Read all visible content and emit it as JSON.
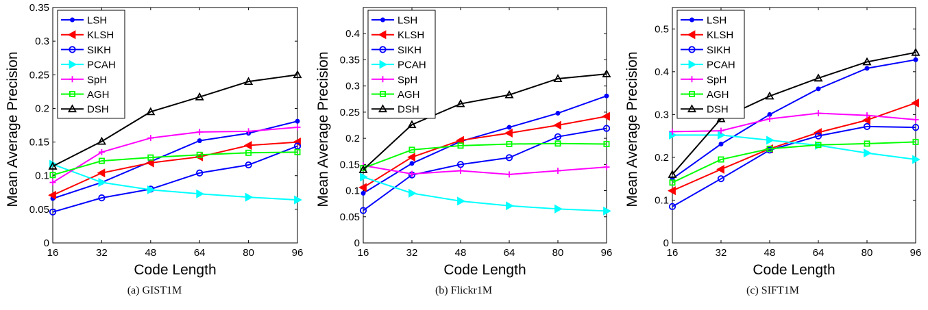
{
  "chart_data": [
    {
      "type": "line",
      "caption": "(a)  GIST1M",
      "xlabel": "Code Length",
      "ylabel": "Mean Average Precision",
      "x": [
        16,
        32,
        48,
        64,
        80,
        96
      ],
      "xticks": [
        "16",
        "32",
        "48",
        "64",
        "80",
        "96"
      ],
      "ylim": [
        0,
        0.35
      ],
      "yticks": [
        "0",
        "0.05",
        "0.1",
        "0.15",
        "0.2",
        "0.25",
        "0.3",
        "0.35"
      ],
      "legend_position": "top-left",
      "series": [
        {
          "name": "LSH",
          "color": "#0000ff",
          "marker": "dot",
          "values": [
            0.066,
            0.09,
            0.121,
            0.152,
            0.163,
            0.181
          ]
        },
        {
          "name": "KLSH",
          "color": "#ff0000",
          "marker": "triangle-left",
          "values": [
            0.071,
            0.104,
            0.119,
            0.128,
            0.145,
            0.15
          ]
        },
        {
          "name": "SIKH",
          "color": "#0000ff",
          "marker": "circle",
          "values": [
            0.046,
            0.067,
            0.08,
            0.104,
            0.116,
            0.144
          ]
        },
        {
          "name": "PCAH",
          "color": "#00ffff",
          "marker": "triangle-right",
          "values": [
            0.117,
            0.09,
            0.079,
            0.073,
            0.068,
            0.064
          ]
        },
        {
          "name": "SpH",
          "color": "#ff00ff",
          "marker": "plus",
          "values": [
            0.09,
            0.135,
            0.156,
            0.165,
            0.166,
            0.172
          ]
        },
        {
          "name": "AGH",
          "color": "#00ff00",
          "marker": "square",
          "values": [
            0.101,
            0.122,
            0.127,
            0.131,
            0.134,
            0.135
          ]
        },
        {
          "name": "DSH",
          "color": "#000000",
          "marker": "triangle-up",
          "values": [
            0.114,
            0.151,
            0.195,
            0.217,
            0.24,
            0.25
          ]
        }
      ]
    },
    {
      "type": "line",
      "caption": "(b)  Flickr1M",
      "xlabel": "Code Length",
      "ylabel": "Mean Average Precision",
      "x": [
        16,
        32,
        48,
        64,
        80,
        96
      ],
      "xticks": [
        "16",
        "32",
        "48",
        "64",
        "80",
        "96"
      ],
      "ylim": [
        0,
        0.45
      ],
      "yticks": [
        "0",
        "0.05",
        "0.1",
        "0.15",
        "0.2",
        "0.25",
        "0.3",
        "0.35",
        "0.4"
      ],
      "legend_position": "top-left",
      "series": [
        {
          "name": "LSH",
          "color": "#0000ff",
          "marker": "dot",
          "values": [
            0.095,
            0.152,
            0.194,
            0.221,
            0.248,
            0.281
          ]
        },
        {
          "name": "KLSH",
          "color": "#ff0000",
          "marker": "triangle-left",
          "values": [
            0.106,
            0.164,
            0.196,
            0.21,
            0.225,
            0.242
          ]
        },
        {
          "name": "SIKH",
          "color": "#0000ff",
          "marker": "circle",
          "values": [
            0.062,
            0.13,
            0.15,
            0.163,
            0.203,
            0.219
          ]
        },
        {
          "name": "PCAH",
          "color": "#00ffff",
          "marker": "triangle-right",
          "values": [
            0.126,
            0.095,
            0.08,
            0.071,
            0.065,
            0.061
          ]
        },
        {
          "name": "SpH",
          "color": "#ff00ff",
          "marker": "plus",
          "values": [
            0.148,
            0.132,
            0.138,
            0.131,
            0.138,
            0.145
          ]
        },
        {
          "name": "AGH",
          "color": "#00ff00",
          "marker": "square",
          "values": [
            0.143,
            0.178,
            0.186,
            0.189,
            0.19,
            0.189
          ]
        },
        {
          "name": "DSH",
          "color": "#000000",
          "marker": "triangle-up",
          "values": [
            0.14,
            0.226,
            0.266,
            0.283,
            0.314,
            0.323
          ]
        }
      ]
    },
    {
      "type": "line",
      "caption": "(c)  SIFT1M",
      "xlabel": "Code Length",
      "ylabel": "Mean Average Precision",
      "x": [
        16,
        32,
        48,
        64,
        80,
        96
      ],
      "xticks": [
        "16",
        "32",
        "48",
        "64",
        "80",
        "96"
      ],
      "ylim": [
        0,
        0.55
      ],
      "yticks": [
        "0",
        "0.1",
        "0.2",
        "0.3",
        "0.4",
        "0.5"
      ],
      "legend_position": "top-left",
      "series": [
        {
          "name": "LSH",
          "color": "#0000ff",
          "marker": "dot",
          "values": [
            0.15,
            0.231,
            0.3,
            0.36,
            0.408,
            0.428
          ]
        },
        {
          "name": "KLSH",
          "color": "#ff0000",
          "marker": "triangle-left",
          "values": [
            0.122,
            0.172,
            0.22,
            0.258,
            0.287,
            0.327
          ]
        },
        {
          "name": "SIKH",
          "color": "#0000ff",
          "marker": "circle",
          "values": [
            0.085,
            0.15,
            0.217,
            0.25,
            0.272,
            0.27
          ]
        },
        {
          "name": "PCAH",
          "color": "#00ffff",
          "marker": "triangle-right",
          "values": [
            0.252,
            0.252,
            0.24,
            0.228,
            0.21,
            0.195
          ]
        },
        {
          "name": "SpH",
          "color": "#ff00ff",
          "marker": "plus",
          "values": [
            0.26,
            0.262,
            0.29,
            0.303,
            0.298,
            0.288
          ]
        },
        {
          "name": "AGH",
          "color": "#00ff00",
          "marker": "square",
          "values": [
            0.141,
            0.195,
            0.22,
            0.229,
            0.232,
            0.236
          ]
        },
        {
          "name": "DSH",
          "color": "#000000",
          "marker": "triangle-up",
          "values": [
            0.16,
            0.29,
            0.343,
            0.385,
            0.423,
            0.445
          ]
        }
      ]
    }
  ]
}
